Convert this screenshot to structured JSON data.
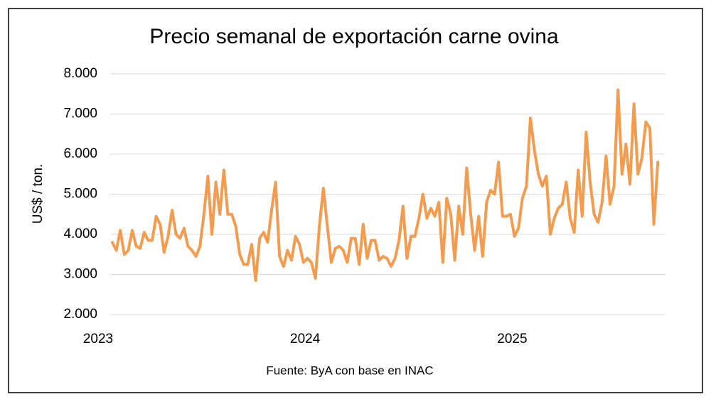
{
  "chart_data": {
    "type": "line",
    "title": "Precio semanal de exportación carne ovina",
    "y_label": "US$ / ton.",
    "source": "Fuente: ByA con base en INAC",
    "categories": [
      "2023",
      null,
      null,
      null,
      null,
      null,
      null,
      null,
      null,
      null,
      null,
      null,
      null,
      null,
      null,
      null,
      null,
      null,
      null,
      null,
      null,
      null,
      null,
      null,
      null,
      null,
      null,
      null,
      null,
      null,
      null,
      null,
      null,
      null,
      null,
      null,
      null,
      null,
      null,
      null,
      null,
      null,
      null,
      null,
      null,
      null,
      null,
      null,
      null,
      null,
      null,
      null,
      "2024",
      null,
      null,
      null,
      null,
      null,
      null,
      null,
      null,
      null,
      null,
      null,
      null,
      null,
      null,
      null,
      null,
      null,
      null,
      null,
      null,
      null,
      null,
      null,
      null,
      null,
      null,
      null,
      null,
      null,
      null,
      null,
      null,
      null,
      null,
      null,
      null,
      null,
      null,
      null,
      null,
      null,
      null,
      null,
      null,
      null,
      null,
      null,
      null,
      null,
      null,
      null,
      "2025",
      null,
      null,
      null,
      null,
      null,
      null,
      null,
      null,
      null,
      null,
      null,
      null,
      null,
      null,
      null,
      null,
      null,
      null,
      null,
      null,
      null,
      null,
      null,
      null,
      null,
      null,
      null,
      null,
      null,
      null,
      null,
      null,
      null
    ],
    "values": [
      3800,
      3600,
      4100,
      3500,
      3600,
      4100,
      3700,
      3650,
      4050,
      3850,
      3850,
      4450,
      4250,
      3550,
      3950,
      4600,
      4000,
      3900,
      4150,
      3700,
      3600,
      3450,
      3700,
      4500,
      5450,
      4000,
      5300,
      4500,
      5600,
      4500,
      4500,
      4200,
      3500,
      3250,
      3250,
      3750,
      2850,
      3900,
      4050,
      3800,
      4600,
      5300,
      3450,
      3200,
      3600,
      3350,
      3950,
      3750,
      3300,
      3400,
      3300,
      2900,
      4200,
      5150,
      4200,
      3300,
      3650,
      3700,
      3600,
      3300,
      3900,
      3900,
      3250,
      4250,
      3400,
      3850,
      3850,
      3350,
      3450,
      3400,
      3200,
      3400,
      3850,
      4700,
      3400,
      3950,
      3950,
      4400,
      5000,
      4400,
      4650,
      4450,
      4800,
      3300,
      4900,
      4500,
      3350,
      4700,
      4000,
      5650,
      4500,
      3600,
      4450,
      3450,
      4800,
      5100,
      5000,
      5800,
      4450,
      4450,
      4500,
      3950,
      4150,
      4900,
      5200,
      6900,
      6100,
      5500,
      5200,
      5450,
      4000,
      4400,
      4650,
      4750,
      5300,
      4400,
      4050,
      5600,
      4450,
      6550,
      5300,
      4500,
      4300,
      4800,
      5950,
      4750,
      5200,
      7600,
      5500,
      6250,
      5250,
      7250,
      5500,
      5900,
      6800,
      6650,
      4250,
      5800
    ],
    "color": "#f39c4f",
    "ylim": [
      2000,
      8000
    ],
    "yticks": [
      {
        "value": 2000,
        "label": "2.000"
      },
      {
        "value": 3000,
        "label": "3.000"
      },
      {
        "value": 4000,
        "label": "4.000"
      },
      {
        "value": 5000,
        "label": "5.000"
      },
      {
        "value": 6000,
        "label": "6.000"
      },
      {
        "value": 7000,
        "label": "7.000"
      },
      {
        "value": 8000,
        "label": "8.000"
      }
    ],
    "grid": true
  }
}
